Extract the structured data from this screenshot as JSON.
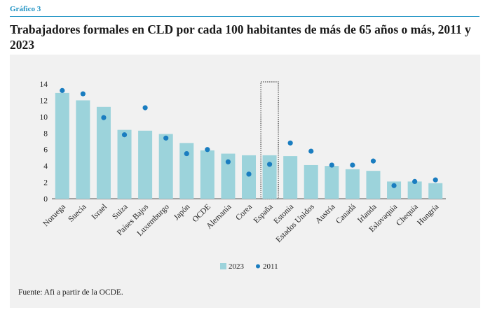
{
  "header": {
    "kicker": "Gráfico 3",
    "title": "Trabajadores formales en CLD por cada 100 habitantes de más de 65 años o más, 2011 y 2023"
  },
  "source": "Fuente: Afi a partir de la OCDE.",
  "colors": {
    "bar": "#9cd3db",
    "dot": "#1a7dc0",
    "accent": "#1f93c4",
    "panel": "#f1f1f1"
  },
  "chart_data": {
    "type": "bar",
    "title": "",
    "xlabel": "",
    "ylabel": "",
    "ylim": [
      0,
      14
    ],
    "yticks": [
      0,
      2,
      4,
      6,
      8,
      10,
      12,
      14
    ],
    "legend_position": "bottom-center",
    "highlight_category": "España",
    "categories": [
      "Noruega",
      "Suecia",
      "Israel",
      "Suiza",
      "Países Bajos",
      "Luxemburgo",
      "Japón",
      "OCDE",
      "Alemania",
      "Corea",
      "España",
      "Estonia",
      "Estados Unidos",
      "Austria",
      "Canadá",
      "Irlanda",
      "Eslovaquia",
      "Chequia",
      "Hungría"
    ],
    "series": [
      {
        "name": "2023",
        "type": "bar",
        "values": [
          12.9,
          12.0,
          11.2,
          8.4,
          8.3,
          7.9,
          6.8,
          5.9,
          5.5,
          5.3,
          5.3,
          5.2,
          4.1,
          4.0,
          3.6,
          3.4,
          2.1,
          2.1,
          1.9
        ]
      },
      {
        "name": "2011",
        "type": "scatter",
        "values": [
          13.2,
          12.8,
          9.9,
          7.8,
          11.1,
          7.4,
          5.5,
          6.0,
          4.5,
          3.0,
          4.2,
          6.8,
          5.8,
          4.1,
          4.1,
          4.6,
          1.6,
          2.1,
          2.3
        ]
      }
    ]
  }
}
